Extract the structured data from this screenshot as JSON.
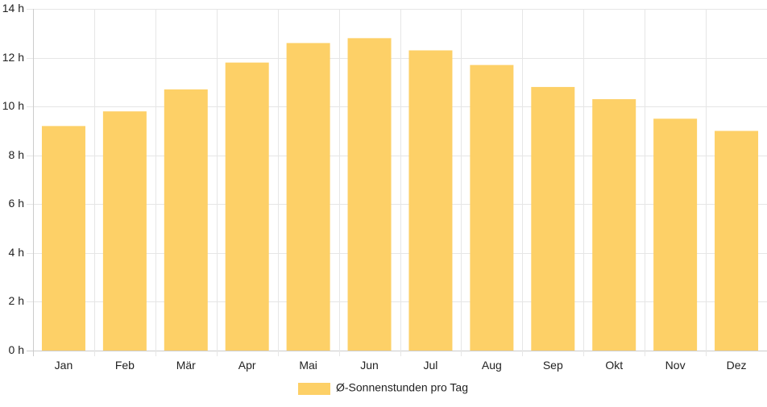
{
  "chart_data": {
    "type": "bar",
    "categories": [
      "Jan",
      "Feb",
      "Mär",
      "Apr",
      "Mai",
      "Jun",
      "Jul",
      "Aug",
      "Sep",
      "Okt",
      "Nov",
      "Dez"
    ],
    "series": [
      {
        "name": "Ø-Sonnenstunden pro Tag",
        "values": [
          9.2,
          9.8,
          10.7,
          11.8,
          12.6,
          12.8,
          12.3,
          11.7,
          10.8,
          10.3,
          9.5,
          9.0
        ],
        "color": "#fdd067"
      }
    ],
    "y_ticks": [
      "0 h",
      "2 h",
      "4 h",
      "6 h",
      "8 h",
      "10 h",
      "12 h",
      "14 h"
    ],
    "ylim": [
      0,
      14
    ],
    "y_unit": "h",
    "grid": true,
    "legend_position": "bottom",
    "colors": {
      "bar": "#fdd067",
      "grid": "#e6e6e6",
      "axis": "#cccccc",
      "text": "#222222"
    }
  }
}
